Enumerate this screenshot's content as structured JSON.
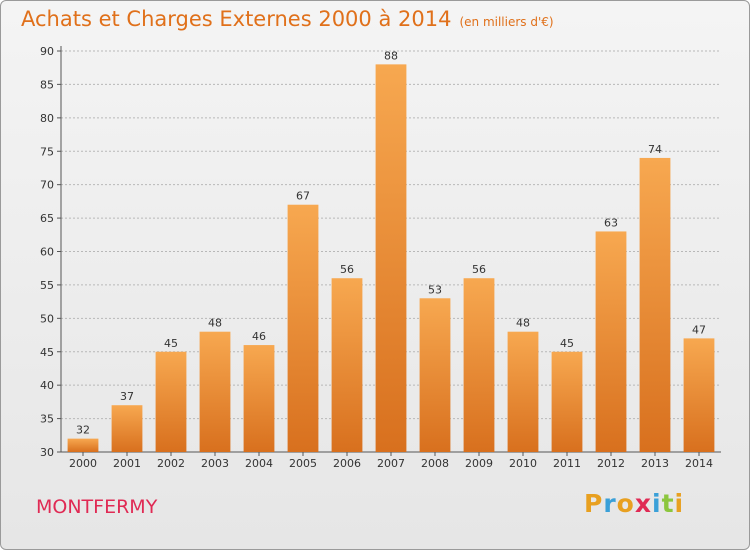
{
  "title": {
    "main": "Achats et Charges Externes 2000 à 2014",
    "sub": "(en milliers d'€)"
  },
  "commune": "MONTFERMY",
  "logo": {
    "letters": [
      {
        "char": "P",
        "color": "#e8a020"
      },
      {
        "char": "r",
        "color": "#3aa0d8"
      },
      {
        "char": "o",
        "color": "#e8a020"
      },
      {
        "char": "x",
        "color": "#e02a54"
      },
      {
        "char": "i",
        "color": "#3aa0d8"
      },
      {
        "char": "t",
        "color": "#8cc63e"
      },
      {
        "char": "i",
        "color": "#e8a020"
      }
    ]
  },
  "colors": {
    "title": "#e0701a",
    "commune": "#e02a54",
    "bar_light": "#f7a850",
    "bar_dark": "#d8701e",
    "grid": "#b8b8b8"
  },
  "chart_data": {
    "type": "bar",
    "categories": [
      "2000",
      "2001",
      "2002",
      "2003",
      "2004",
      "2005",
      "2006",
      "2007",
      "2008",
      "2009",
      "2010",
      "2011",
      "2012",
      "2013",
      "2014"
    ],
    "values": [
      32,
      37,
      45,
      48,
      46,
      67,
      56,
      88,
      53,
      56,
      48,
      45,
      63,
      74,
      47
    ],
    "title": "Achats et Charges Externes 2000 à 2014",
    "ylim": [
      30,
      90
    ],
    "yticks": [
      30,
      35,
      40,
      45,
      50,
      55,
      60,
      65,
      70,
      75,
      80,
      85,
      90
    ],
    "grid": true,
    "legend": "none"
  }
}
